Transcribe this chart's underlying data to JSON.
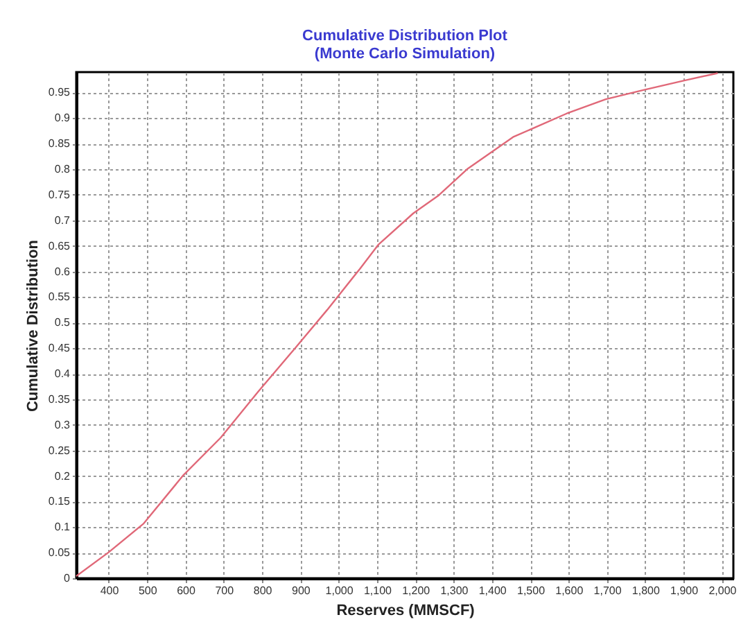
{
  "chart_data": {
    "type": "line",
    "title": [
      "Cumulative Distribution Plot",
      "(Monte Carlo Simulation)"
    ],
    "xlabel": "Reserves (MMSCF)",
    "ylabel": "Cumulative Distribution",
    "x": [
      315,
      400,
      491,
      595,
      692,
      790,
      885,
      970,
      1055,
      1103,
      1195,
      1261,
      1335,
      1455,
      1595,
      1697,
      1795,
      1904,
      1989
    ],
    "series": [
      {
        "color": "#e06878",
        "values": [
          0.004,
          0.051,
          0.107,
          0.202,
          0.275,
          0.365,
          0.449,
          0.525,
          0.605,
          0.652,
          0.714,
          0.749,
          0.8,
          0.863,
          0.909,
          0.937,
          0.955,
          0.974,
          0.988
        ]
      }
    ],
    "xlim": [
      315,
      2030
    ],
    "ylim": [
      0,
      0.99
    ],
    "xticks": [
      400,
      500,
      600,
      700,
      800,
      900,
      {
        "value": 1000,
        "label": "1,000"
      },
      {
        "value": 1100,
        "label": "1,100"
      },
      {
        "value": 1200,
        "label": "1,200"
      },
      {
        "value": 1300,
        "label": "1,300"
      },
      {
        "value": 1400,
        "label": "1,400"
      },
      {
        "value": 1500,
        "label": "1,500"
      },
      {
        "value": 1600,
        "label": "1,600"
      },
      {
        "value": 1700,
        "label": "1,700"
      },
      {
        "value": 1800,
        "label": "1,800"
      },
      {
        "value": 1900,
        "label": "1,900"
      },
      {
        "value": 2000,
        "label": "2,000"
      }
    ],
    "yticks": [
      0,
      0.05,
      0.1,
      0.15,
      0.2,
      0.25,
      0.3,
      0.35,
      0.4,
      0.45,
      0.5,
      0.55,
      0.6,
      0.65,
      0.7,
      0.75,
      0.8,
      0.85,
      0.9,
      0.95
    ],
    "grid": true,
    "line_style": "solid",
    "marker": "none"
  }
}
